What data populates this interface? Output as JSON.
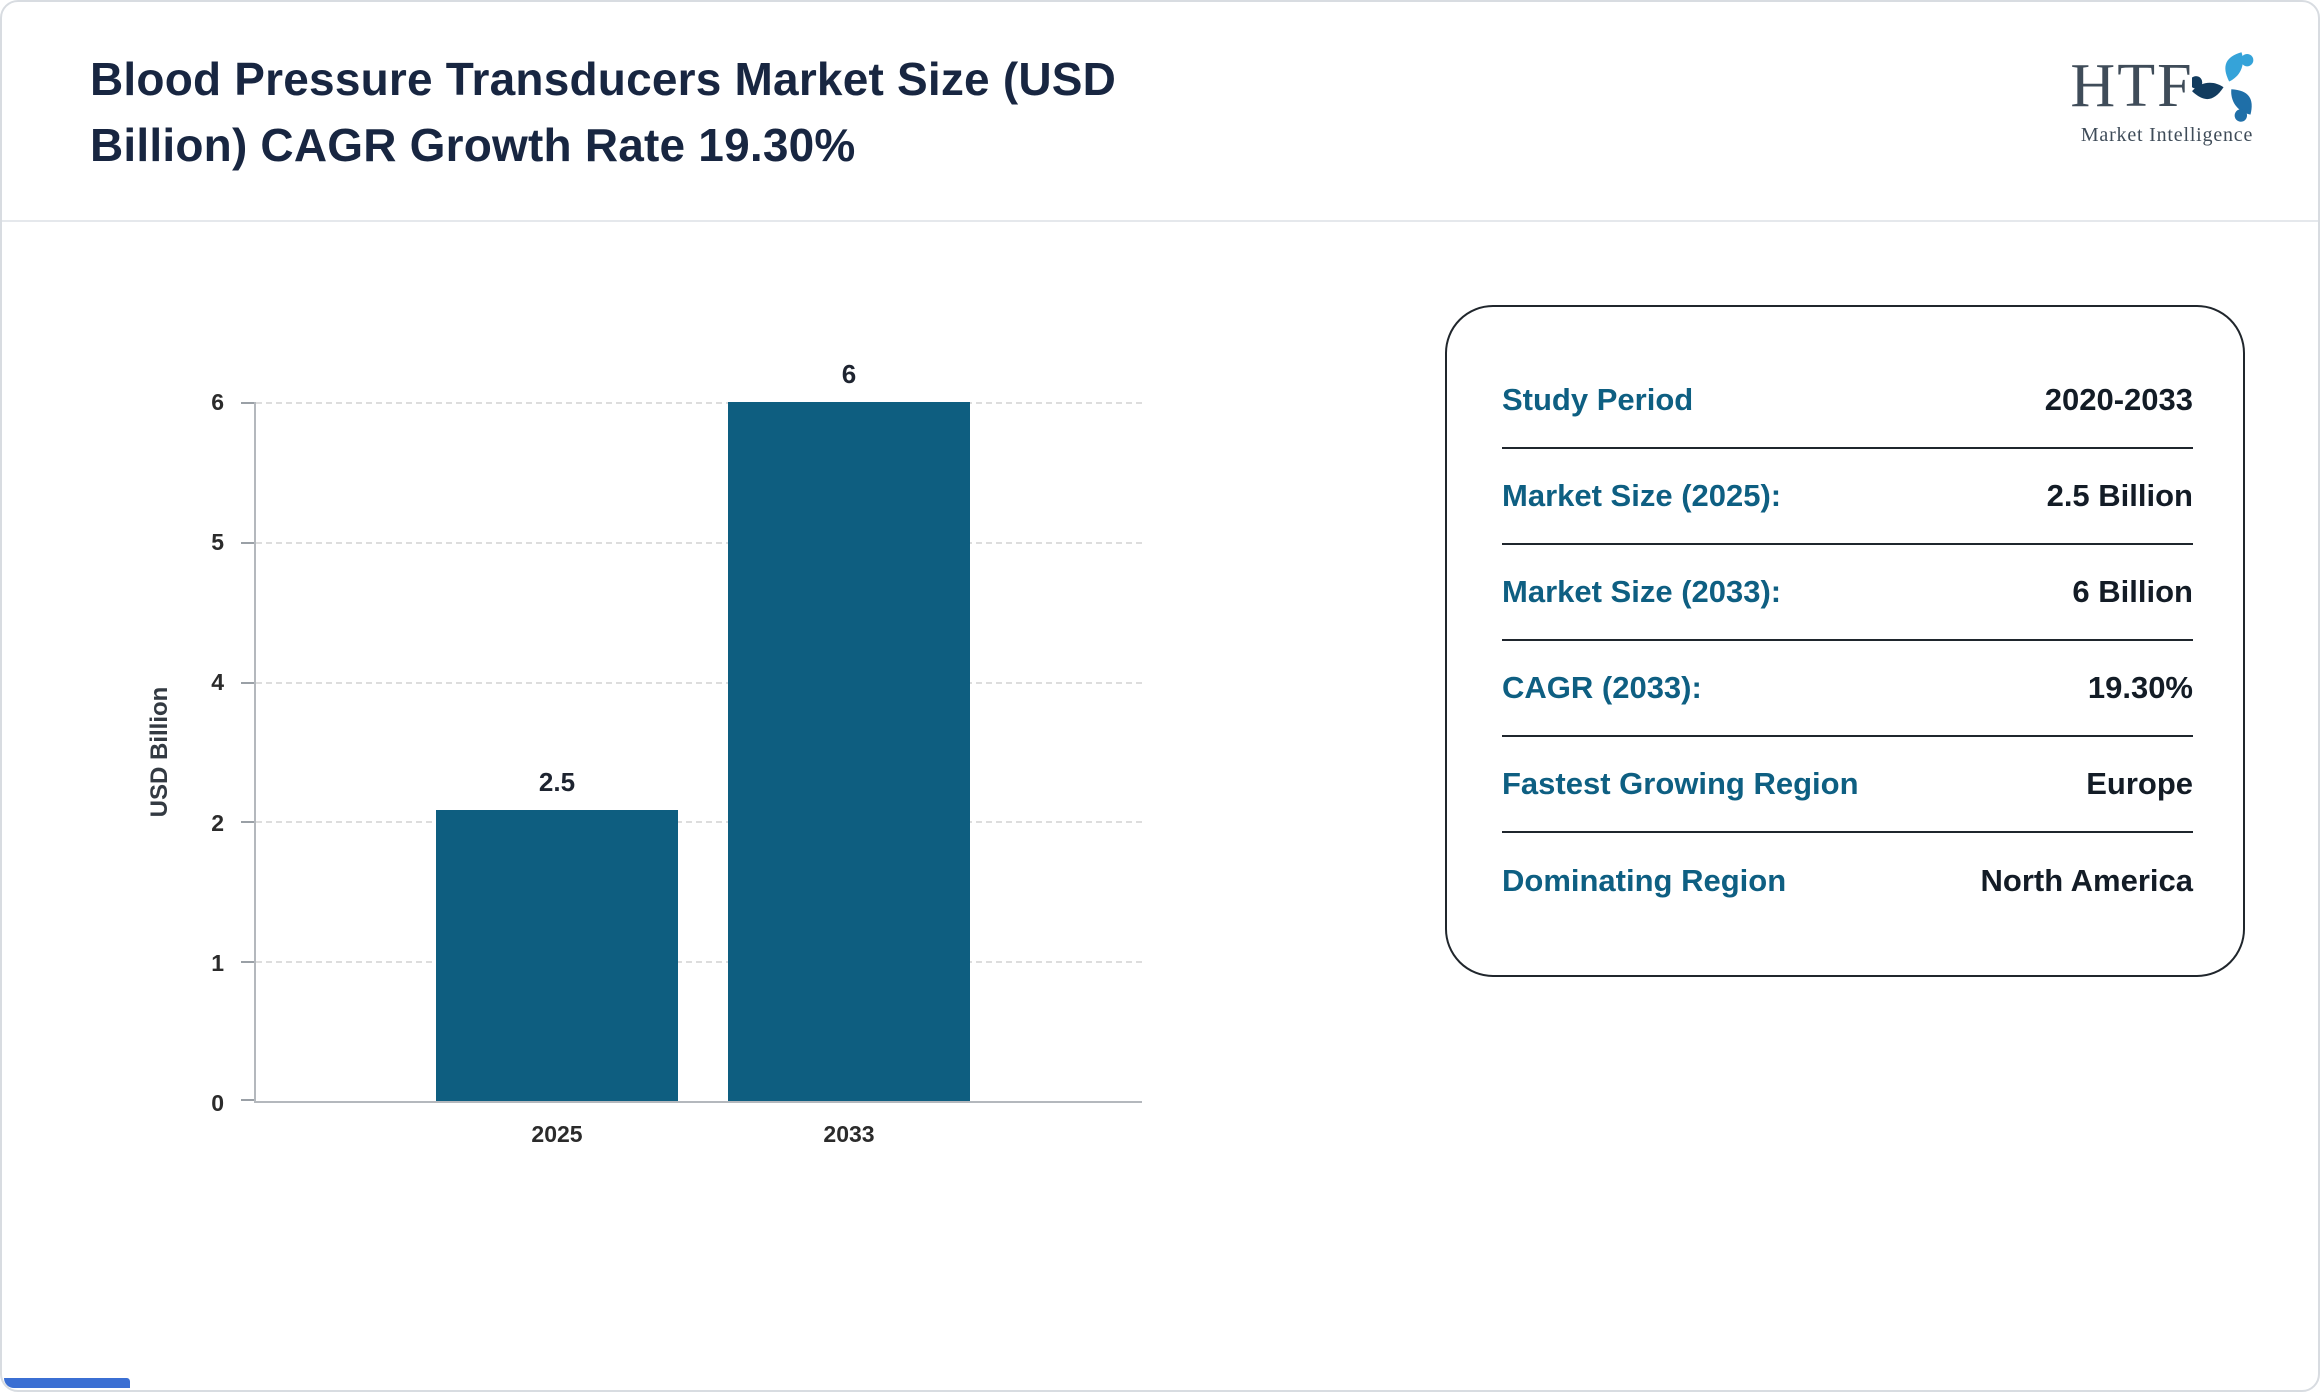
{
  "header": {
    "title_line1": "Blood Pressure Transducers Market Size (USD",
    "title_line2": "Billion) CAGR Growth Rate 19.30%"
  },
  "logo": {
    "brand": "HTF",
    "subtitle": "Market Intelligence"
  },
  "chart_data": {
    "type": "bar",
    "categories": [
      "2025",
      "2033"
    ],
    "values": [
      2.5,
      6
    ],
    "bar_labels": [
      "2.5",
      "6"
    ],
    "title": "",
    "xlabel": "",
    "ylabel": "USD Billion",
    "ylim": [
      0,
      6
    ],
    "ytick_labels": [
      "6",
      "5",
      "4",
      "2",
      "1",
      "0"
    ],
    "grid": "dashed-horizontal",
    "legend": "none",
    "bar_color": "#0e5e80"
  },
  "info_card": {
    "rows": [
      {
        "label": "Study Period",
        "value": "2020-2033"
      },
      {
        "label": "Market Size (2025):",
        "value": "2.5 Billion"
      },
      {
        "label": "Market Size (2033):",
        "value": "6 Billion"
      },
      {
        "label": "CAGR (2033):",
        "value": "19.30%"
      },
      {
        "label": "Fastest Growing Region",
        "value": "Europe"
      },
      {
        "label": "Dominating Region",
        "value": "North America"
      }
    ]
  },
  "colors": {
    "title_navy": "#182641",
    "accent_teal": "#0e5f82",
    "value_dark": "#131c26",
    "footer_blue": "#3b6fd3",
    "grid_gray": "#dddddd"
  }
}
